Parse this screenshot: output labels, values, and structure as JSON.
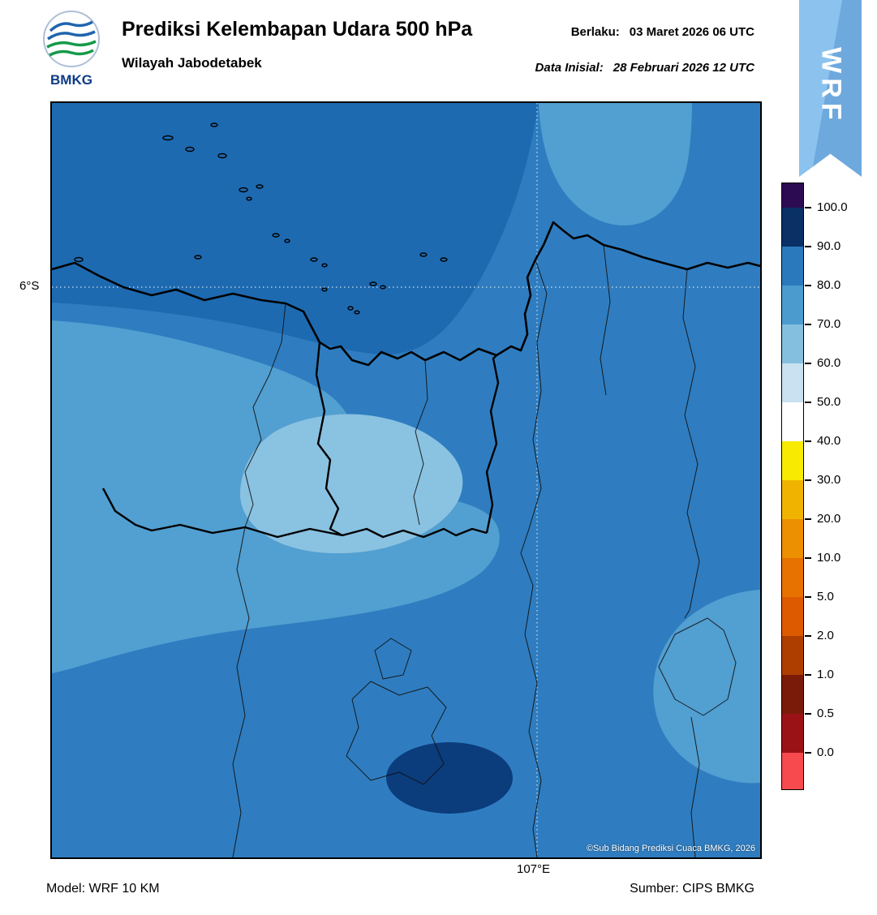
{
  "header": {
    "logo_text": "BMKG",
    "title": "Prediksi Kelembapan Udara 500 hPa",
    "subtitle": "Wilayah Jabodetabek",
    "valid_label": "Berlaku:",
    "valid_value": "03 Maret 2026 06 UTC",
    "initial_label": "Data Inisial:",
    "initial_value": "28 Februari 2026 12 UTC",
    "ribbon_text": "WRF"
  },
  "map": {
    "lat_label": "6°S",
    "lon_label": "107°E",
    "copyright": "©Sub Bidang Prediksi Cuaca BMKG, 2026",
    "colors": {
      "base": "#2f7dc0",
      "band_dark": "#1d6ab1",
      "band_light": "#529fd1",
      "band_lighter": "#8ac2e1",
      "band_navy": "#0b3c7c"
    }
  },
  "colorbar": {
    "unit": "%",
    "tick_labels": [
      "100.0",
      "90.0",
      "80.0",
      "70.0",
      "60.0",
      "50.0",
      "40.0",
      "30.0",
      "20.0",
      "10.0",
      "5.0",
      "2.0",
      "1.0",
      "0.5",
      "0.0"
    ],
    "segment_colors": [
      "#2d0b52",
      "#0a3066",
      "#2b79bd",
      "#4c9bcf",
      "#85bfdf",
      "#c9e1f1",
      "#ffffff",
      "#f8ea00",
      "#f0b400",
      "#ec8f00",
      "#e87200",
      "#dd5a00",
      "#ad3e00",
      "#7a1b0a",
      "#9b1216",
      "#f64a4f"
    ]
  },
  "footer": {
    "model": "Model: WRF 10 KM",
    "source": "Sumber: CIPS BMKG"
  }
}
